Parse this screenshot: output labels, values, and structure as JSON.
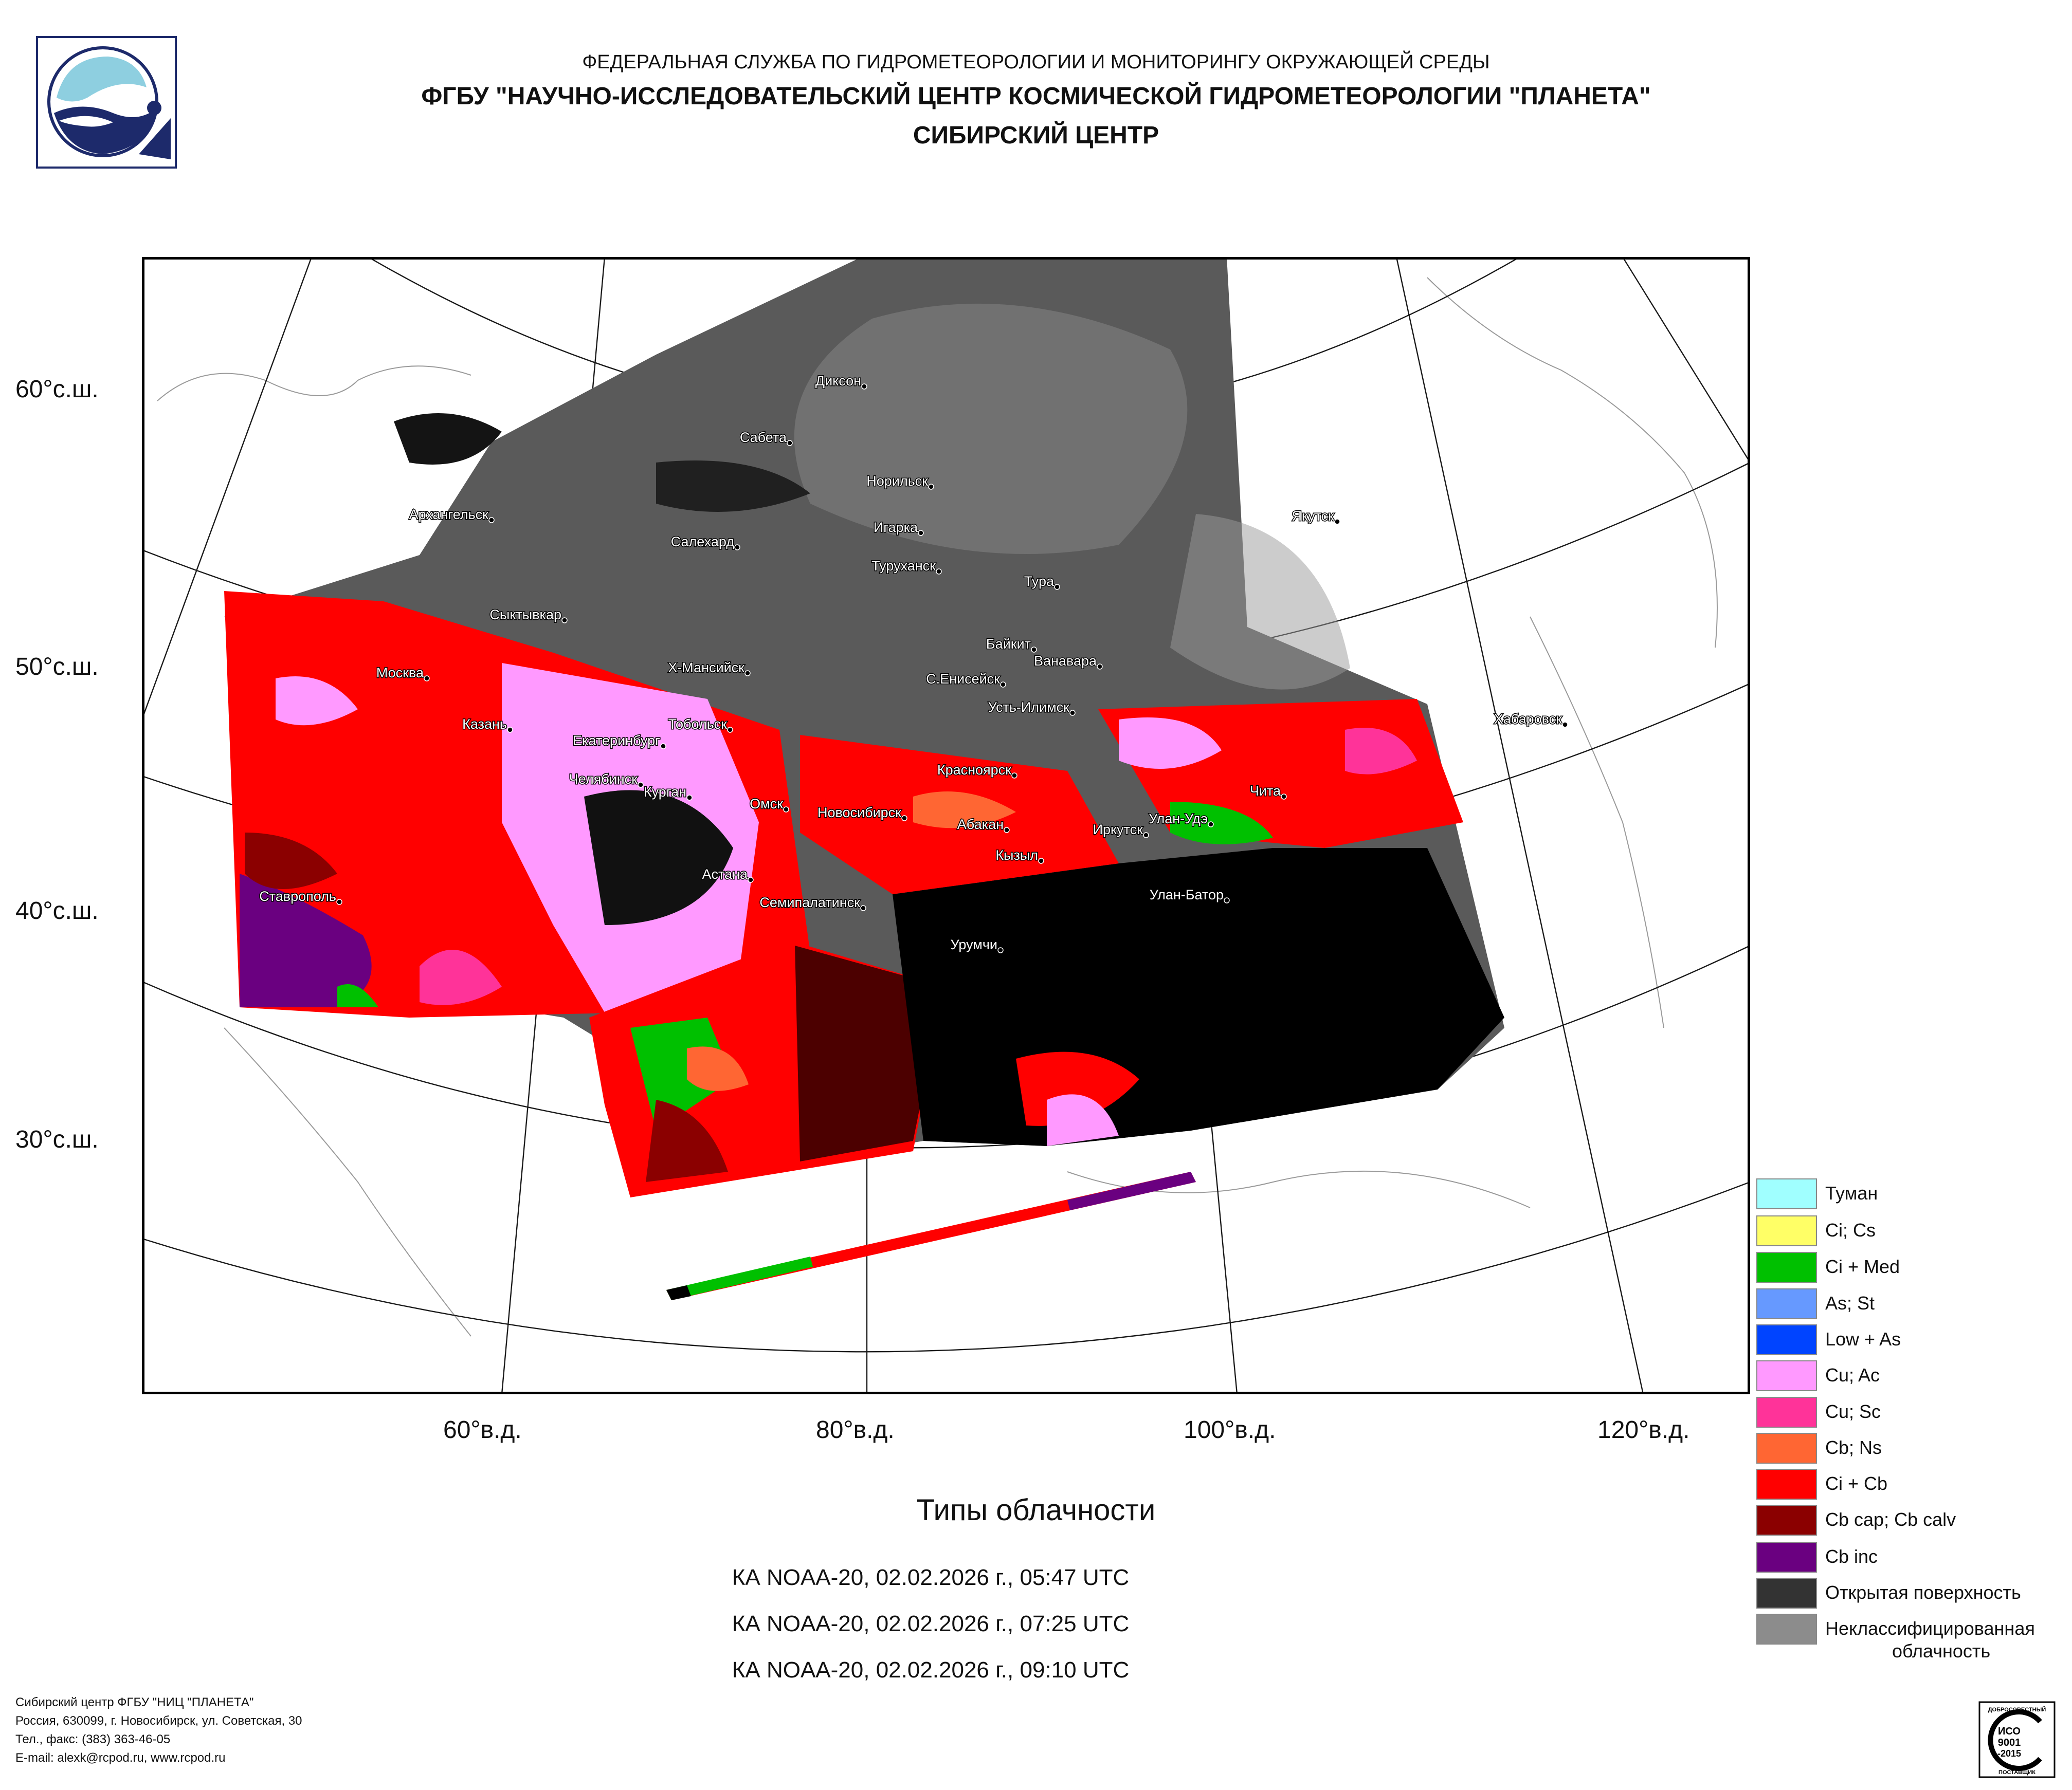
{
  "header": {
    "line1": "ФЕДЕРАЛЬНАЯ СЛУЖБА ПО ГИДРОМЕТЕОРОЛОГИИ И МОНИТОРИНГУ ОКРУЖАЮЩЕЙ СРЕДЫ",
    "line2": "ФГБУ \"НАУЧНО-ИССЛЕДОВАТЕЛЬСКИЙ ЦЕНТР КОСМИЧЕСКОЙ ГИДРОМЕТЕОРОЛОГИИ \"ПЛАНЕТА\"",
    "line3": "СИБИРСКИЙ ЦЕНТР"
  },
  "axes": {
    "lat_labels": [
      "60°с.ш.",
      "50°с.ш.",
      "40°с.ш.",
      "30°с.ш."
    ],
    "lon_labels": [
      "60°в.д.",
      "80°в.д.",
      "100°в.д.",
      "120°в.д."
    ]
  },
  "cities": [
    {
      "name": "Диксон"
    },
    {
      "name": "Сабета"
    },
    {
      "name": "Норильск"
    },
    {
      "name": "Архангельск"
    },
    {
      "name": "Игарка"
    },
    {
      "name": "Салехард"
    },
    {
      "name": "Якутск"
    },
    {
      "name": "Туруханск"
    },
    {
      "name": "Тура"
    },
    {
      "name": "Сыктывкар"
    },
    {
      "name": "Байкит"
    },
    {
      "name": "Ванавара"
    },
    {
      "name": "Москва"
    },
    {
      "name": "Х-Мансийск"
    },
    {
      "name": "С.Енисейск"
    },
    {
      "name": "Усть-Илимск"
    },
    {
      "name": "Хабаровск"
    },
    {
      "name": "Казань"
    },
    {
      "name": "Тобольск"
    },
    {
      "name": "Екатеринбург"
    },
    {
      "name": "Красноярск"
    },
    {
      "name": "Челябинск"
    },
    {
      "name": "Курган"
    },
    {
      "name": "Чита"
    },
    {
      "name": "Омск"
    },
    {
      "name": "Новосибирск"
    },
    {
      "name": "Улан-Удэ"
    },
    {
      "name": "Абакан"
    },
    {
      "name": "Иркутск"
    },
    {
      "name": "Кызыл"
    },
    {
      "name": "Астана"
    },
    {
      "name": "Улан-Батор"
    },
    {
      "name": "Ставрополь"
    },
    {
      "name": "Семипалатинск"
    },
    {
      "name": "Урумчи"
    }
  ],
  "chart_title": "Типы облачности",
  "passes": [
    "КА NOAA-20, 02.02.2026 г., 05:47 UTC",
    "КА NOAA-20, 02.02.2026 г., 07:25 UTC",
    "КА NOAA-20, 02.02.2026 г., 09:10 UTC"
  ],
  "legend": [
    {
      "label": "Туман",
      "color": "#a0ffff"
    },
    {
      "label": "Ci; Cs",
      "color": "#ffff66"
    },
    {
      "label": "Ci + Med",
      "color": "#00c000"
    },
    {
      "label": "As; St",
      "color": "#6699ff"
    },
    {
      "label": "Low + As",
      "color": "#0044ff"
    },
    {
      "label": "Cu; Ac",
      "color": "#ff99ff"
    },
    {
      "label": "Cu; Sc",
      "color": "#ff3399"
    },
    {
      "label": "Cb; Ns",
      "color": "#ff6633"
    },
    {
      "label": "Ci + Cb",
      "color": "#ff0000"
    },
    {
      "label": "Cb cap; Cb calv",
      "color": "#8b0000"
    },
    {
      "label": "Cb inc",
      "color": "#6a0080"
    },
    {
      "label": "Открытая поверхность",
      "color": "#333333"
    },
    {
      "label": "Неклассифицированная облачность",
      "label_line1": "Неклассифицированная",
      "label_line2": "облачность",
      "color": "#8c8c8c"
    }
  ],
  "footer": {
    "line1": "Сибирский центр ФГБУ \"НИЦ \"ПЛАНЕТА\"",
    "line2": "Россия, 630099, г. Новосибирск, ул. Советская, 30",
    "line3": "Тел., факс: (383) 363-46-05",
    "line4": "E-mail: alexk@rcpod.ru, www.rcpod.ru"
  },
  "iso_badge": {
    "top": "ДОБРОСОВЕСТНЫЙ",
    "mid1": "ИСО",
    "mid2": "9001",
    "mid3": "-2015",
    "bottom": "ПОСТАВЩИК"
  }
}
